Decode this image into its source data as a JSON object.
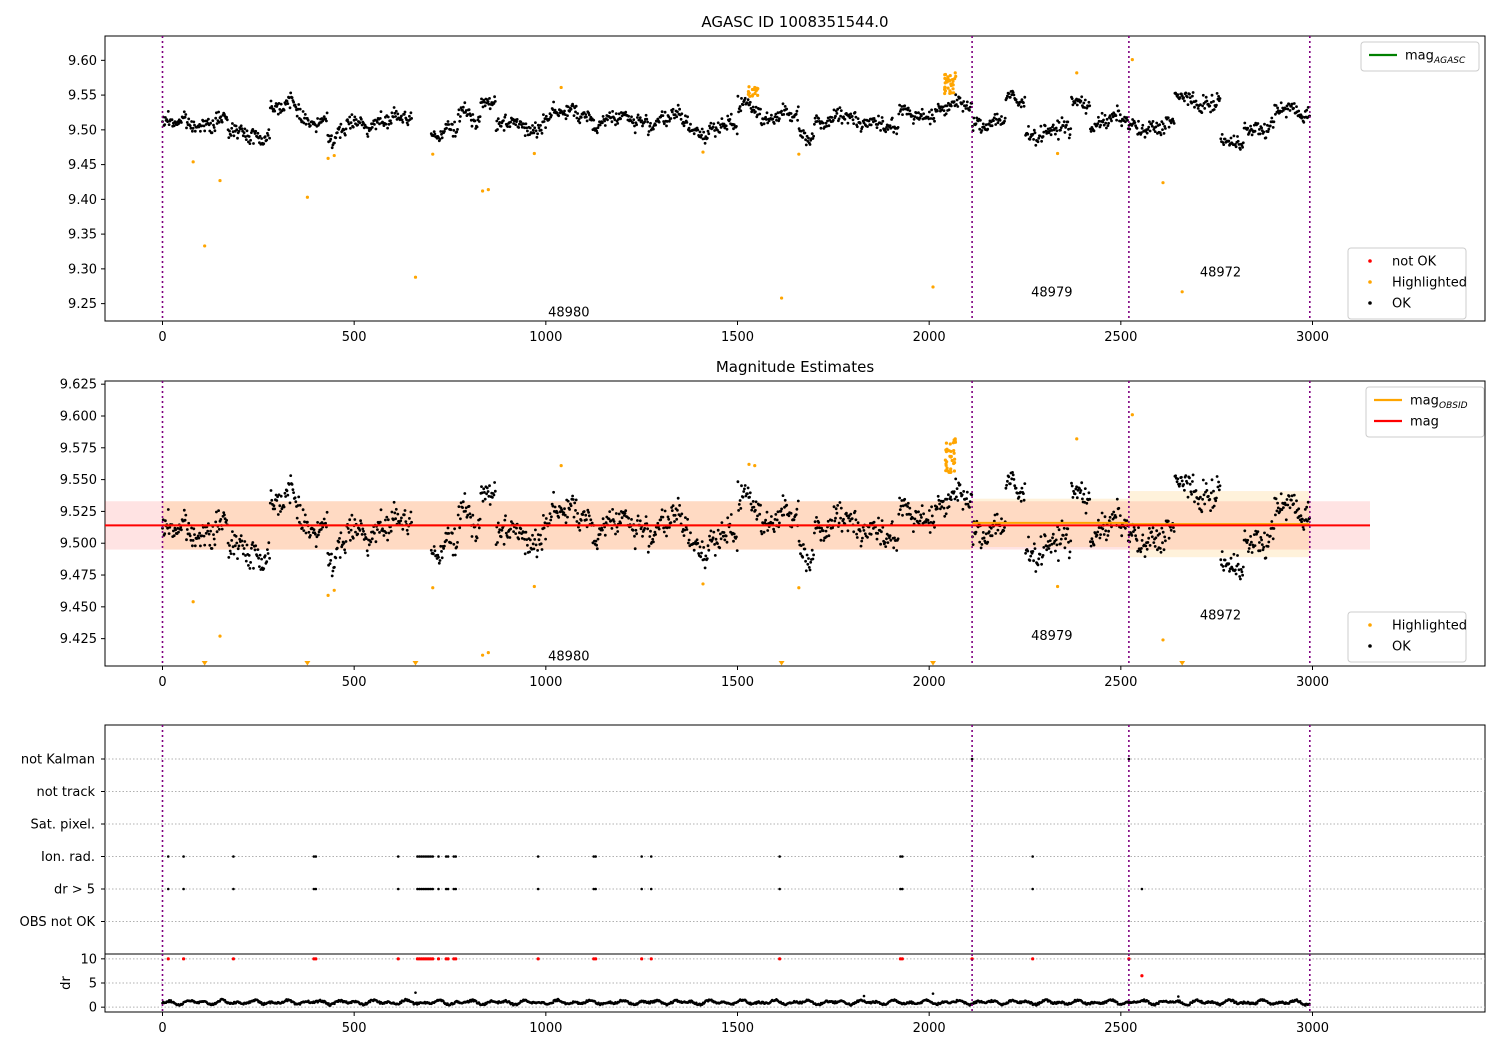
{
  "chart_data": [
    {
      "type": "scatter",
      "title": "AGASC ID 1008351544.0",
      "xlim": [
        -150,
        3450
      ],
      "ylim": [
        9.225,
        9.635
      ],
      "xticks": [
        0,
        500,
        1000,
        1500,
        2000,
        2500,
        3000
      ],
      "yticks": [
        9.25,
        9.3,
        9.35,
        9.4,
        9.45,
        9.5,
        9.55,
        9.6
      ],
      "ytick_labels": [
        "9.25",
        "9.30",
        "9.35",
        "9.40",
        "9.45",
        "9.50",
        "9.55",
        "9.60"
      ],
      "legend_upper": {
        "position": "top-right",
        "entries": [
          {
            "label": "mag",
            "sub": "AGASC",
            "color": "#008000",
            "kind": "line"
          }
        ]
      },
      "legend_lower": {
        "position": "bottom-right",
        "entries": [
          {
            "label": "not OK",
            "color": "#ff0000",
            "kind": "marker"
          },
          {
            "label": "Highlighted",
            "color": "#ffa500",
            "kind": "marker"
          },
          {
            "label": "OK",
            "color": "#000000",
            "kind": "marker"
          }
        ]
      },
      "obs_boundaries": [
        0,
        2112,
        2521,
        2993
      ],
      "obsid_labels": [
        {
          "text": "48980",
          "x": 1060,
          "y": 9.237
        },
        {
          "text": "48979",
          "x": 2320,
          "y": 9.266
        },
        {
          "text": "48972",
          "x": 2760,
          "y": 9.295
        }
      ],
      "base_level": 9.512,
      "segments": [
        {
          "x0": 0,
          "x1": 80,
          "level": 9.508
        },
        {
          "x0": 80,
          "x1": 170,
          "level": 9.512
        },
        {
          "x0": 170,
          "x1": 280,
          "level": 9.495
        },
        {
          "x0": 280,
          "x1": 360,
          "level": 9.532
        },
        {
          "x0": 360,
          "x1": 430,
          "level": 9.515
        },
        {
          "x0": 430,
          "x1": 480,
          "level": 9.488
        },
        {
          "x0": 480,
          "x1": 650,
          "level": 9.512
        },
        {
          "x0": 700,
          "x1": 770,
          "level": 9.495
        },
        {
          "x0": 770,
          "x1": 830,
          "level": 9.522
        },
        {
          "x0": 830,
          "x1": 870,
          "level": 9.542
        },
        {
          "x0": 870,
          "x1": 990,
          "level": 9.505
        },
        {
          "x0": 990,
          "x1": 1120,
          "level": 9.522
        },
        {
          "x0": 1120,
          "x1": 1370,
          "level": 9.514
        },
        {
          "x0": 1370,
          "x1": 1500,
          "level": 9.502
        },
        {
          "x0": 1500,
          "x1": 1560,
          "level": 9.536
        },
        {
          "x0": 1560,
          "x1": 1660,
          "level": 9.518
        },
        {
          "x0": 1660,
          "x1": 1700,
          "level": 9.496
        },
        {
          "x0": 1700,
          "x1": 1880,
          "level": 9.515
        },
        {
          "x0": 1880,
          "x1": 1920,
          "level": 9.498
        },
        {
          "x0": 1920,
          "x1": 2050,
          "level": 9.525
        },
        {
          "x0": 2050,
          "x1": 2112,
          "level": 9.535
        },
        {
          "x0": 2112,
          "x1": 2200,
          "level": 9.512
        },
        {
          "x0": 2200,
          "x1": 2250,
          "level": 9.54
        },
        {
          "x0": 2250,
          "x1": 2370,
          "level": 9.498
        },
        {
          "x0": 2370,
          "x1": 2420,
          "level": 9.54
        },
        {
          "x0": 2420,
          "x1": 2521,
          "level": 9.512
        },
        {
          "x0": 2521,
          "x1": 2640,
          "level": 9.505
        },
        {
          "x0": 2640,
          "x1": 2700,
          "level": 9.545
        },
        {
          "x0": 2700,
          "x1": 2760,
          "level": 9.54
        },
        {
          "x0": 2760,
          "x1": 2820,
          "level": 9.478
        },
        {
          "x0": 2820,
          "x1": 2900,
          "level": 9.505
        },
        {
          "x0": 2900,
          "x1": 2993,
          "level": 9.525
        }
      ],
      "highlighted": [
        [
          80,
          9.454
        ],
        [
          110,
          9.333
        ],
        [
          150,
          9.427
        ],
        [
          378,
          9.403
        ],
        [
          432,
          9.459
        ],
        [
          448,
          9.463
        ],
        [
          660,
          9.288
        ],
        [
          705,
          9.465
        ],
        [
          835,
          9.412
        ],
        [
          850,
          9.414
        ],
        [
          970,
          9.466
        ],
        [
          1040,
          9.561
        ],
        [
          1410,
          9.468
        ],
        [
          1530,
          9.562
        ],
        [
          1545,
          9.561
        ],
        [
          1615,
          9.258
        ],
        [
          1660,
          9.465
        ],
        [
          2010,
          9.274
        ],
        [
          2045,
          9.572
        ],
        [
          2055,
          9.578
        ],
        [
          2060,
          9.565
        ],
        [
          2068,
          9.582
        ],
        [
          2335,
          9.466
        ],
        [
          2385,
          9.582
        ],
        [
          2530,
          9.601
        ],
        [
          2610,
          9.424
        ],
        [
          2660,
          9.267
        ]
      ],
      "not_ok": []
    },
    {
      "type": "scatter",
      "title": "Magnitude Estimates",
      "xlim": [
        -150,
        3450
      ],
      "ylim": [
        9.4035,
        9.6275
      ],
      "xticks": [
        0,
        500,
        1000,
        1500,
        2000,
        2500,
        3000
      ],
      "yticks": [
        9.425,
        9.45,
        9.475,
        9.5,
        9.525,
        9.55,
        9.575,
        9.6,
        9.625
      ],
      "ytick_labels": [
        "9.425",
        "9.450",
        "9.475",
        "9.500",
        "9.525",
        "9.550",
        "9.575",
        "9.600",
        "9.625"
      ],
      "legend_upper": {
        "position": "top-right",
        "entries": [
          {
            "label": "mag",
            "sub": "OBSID",
            "color": "#ffa500",
            "kind": "line"
          },
          {
            "label": "mag",
            "sub": "",
            "color": "#ff0000",
            "kind": "line"
          }
        ]
      },
      "legend_lower": {
        "position": "bottom-right",
        "entries": [
          {
            "label": "Highlighted",
            "color": "#ffa500",
            "kind": "marker"
          },
          {
            "label": "OK",
            "color": "#000000",
            "kind": "marker"
          }
        ]
      },
      "mag": {
        "value": 9.514,
        "lo": 9.495,
        "hi": 9.533,
        "x0": -150,
        "x1": 3150
      },
      "obsid_bands": [
        {
          "x0": 0,
          "x1": 2112,
          "value": 9.514,
          "lo": 9.495,
          "hi": 9.533
        },
        {
          "x0": 2112,
          "x1": 2521,
          "value": 9.516,
          "lo": 9.497,
          "hi": 9.535
        },
        {
          "x0": 2521,
          "x1": 2993,
          "value": 9.515,
          "lo": 9.489,
          "hi": 9.541
        }
      ],
      "obsid_labels": [
        {
          "text": "48980",
          "x": 1060,
          "y": 9.411
        },
        {
          "text": "48979",
          "x": 2320,
          "y": 9.427
        },
        {
          "text": "48972",
          "x": 2760,
          "y": 9.443
        }
      ],
      "out_of_range_markers": [
        110,
        378,
        660,
        1615,
        2010,
        2660
      ]
    },
    {
      "type": "scatter",
      "title": "",
      "flag_rows": [
        "not Kalman",
        "not track",
        "Sat. pixel.",
        "Ion. rad.",
        "dr > 5",
        "OBS not OK"
      ],
      "flag_events": {
        "Ion. rad.": [
          15,
          55,
          185,
          395,
          400,
          615,
          665,
          670,
          675,
          680,
          685,
          690,
          695,
          700,
          705,
          720,
          740,
          745,
          760,
          765,
          980,
          1125,
          1130,
          1250,
          1275,
          1610,
          1925,
          1930,
          2270
        ],
        "dr > 5": [
          15,
          55,
          185,
          395,
          400,
          615,
          665,
          670,
          675,
          680,
          685,
          690,
          695,
          700,
          705,
          720,
          740,
          745,
          760,
          765,
          980,
          1125,
          1130,
          1250,
          1275,
          1610,
          1925,
          1930,
          2270,
          2555
        ],
        "not Kalman": [
          2112,
          2521
        ]
      },
      "dr": {
        "ylabel": "dr",
        "yticks": [
          0,
          5,
          10
        ],
        "ylim": [
          -1,
          11
        ],
        "cap": 10,
        "capped_x": [
          15,
          55,
          185,
          395,
          400,
          615,
          665,
          670,
          675,
          680,
          685,
          690,
          695,
          700,
          705,
          720,
          740,
          745,
          760,
          765,
          980,
          1125,
          1130,
          1250,
          1275,
          1610,
          1925,
          1930,
          2112,
          2270,
          2521
        ],
        "red_points": [
          [
            2555,
            6.5
          ]
        ],
        "spikes": [
          [
            660,
            3.0
          ],
          [
            1830,
            2.3
          ],
          [
            2010,
            2.8
          ],
          [
            2650,
            2.2
          ]
        ]
      },
      "xlim": [
        -150,
        3450
      ],
      "xticks": [
        0,
        500,
        1000,
        1500,
        2000,
        2500,
        3000
      ]
    }
  ]
}
